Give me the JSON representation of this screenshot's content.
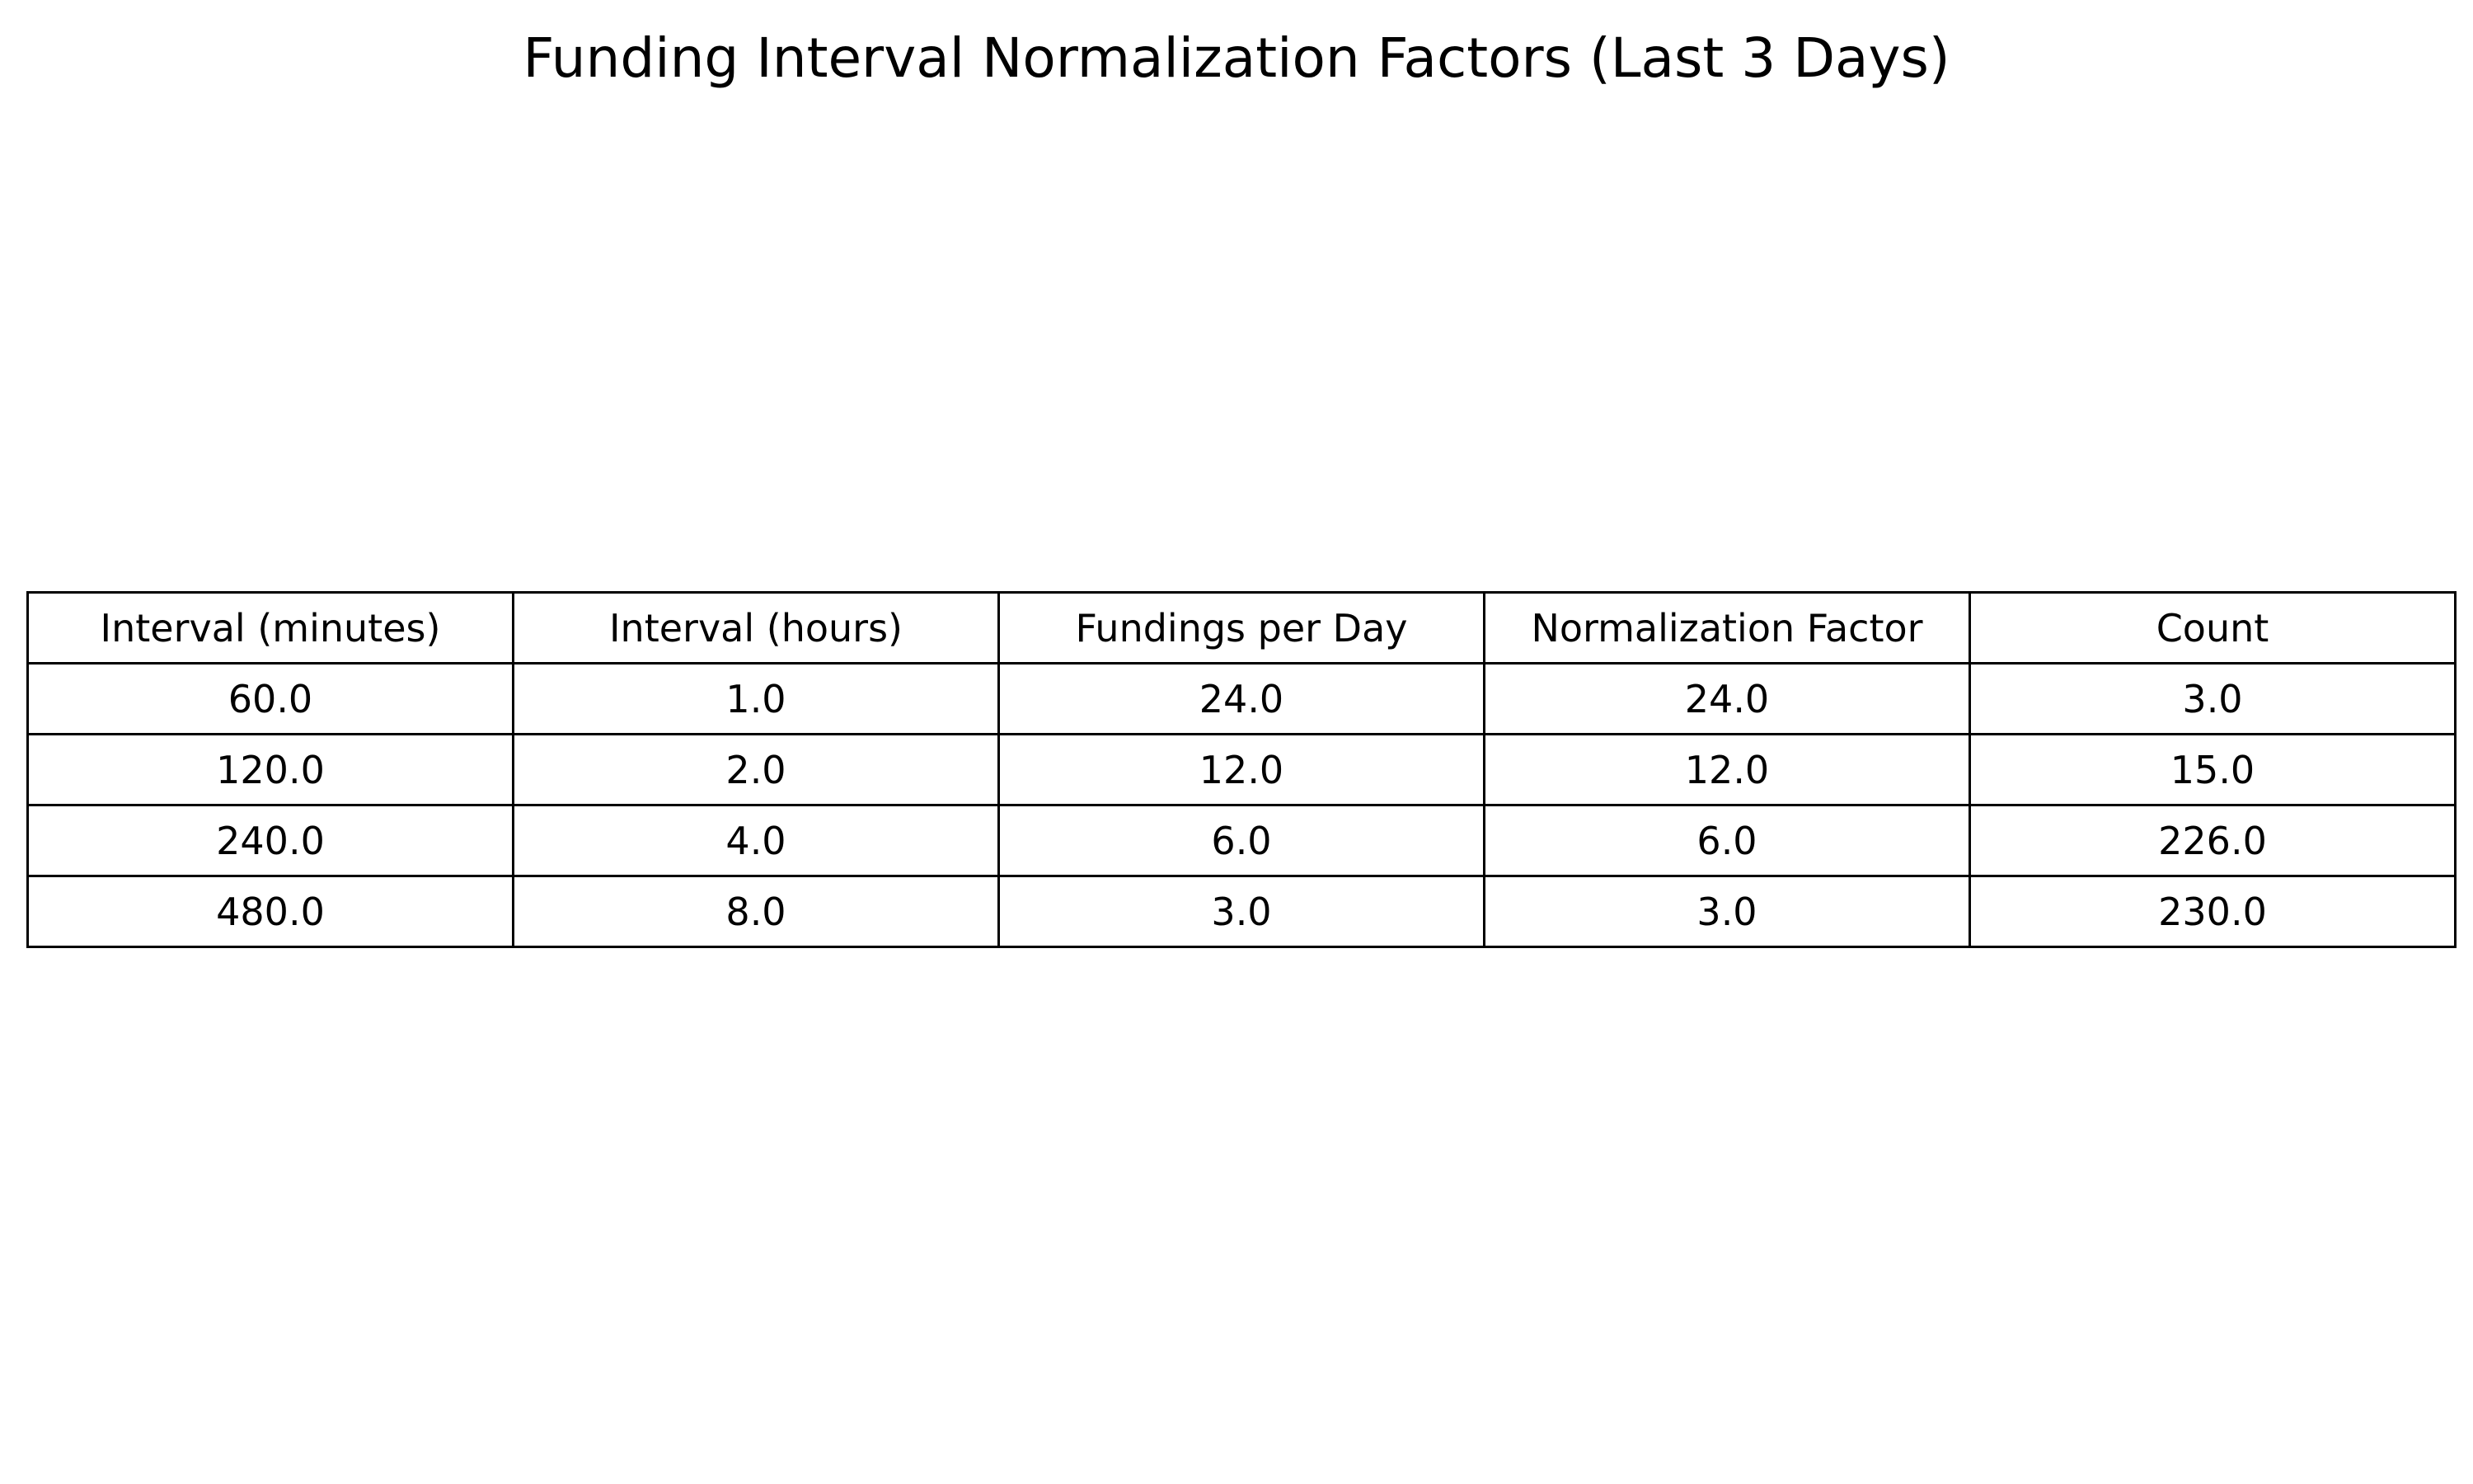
{
  "chart_data": {
    "type": "table",
    "title": "Funding Interval Normalization Factors (Last 3 Days)",
    "columns": [
      "Interval (minutes)",
      "Interval (hours)",
      "Fundings per Day",
      "Normalization Factor",
      "Count"
    ],
    "rows": [
      [
        "60.0",
        "1.0",
        "24.0",
        "24.0",
        "3.0"
      ],
      [
        "120.0",
        "2.0",
        "12.0",
        "12.0",
        "15.0"
      ],
      [
        "240.0",
        "4.0",
        "6.0",
        "6.0",
        "226.0"
      ],
      [
        "480.0",
        "8.0",
        "3.0",
        "3.0",
        "230.0"
      ]
    ]
  }
}
